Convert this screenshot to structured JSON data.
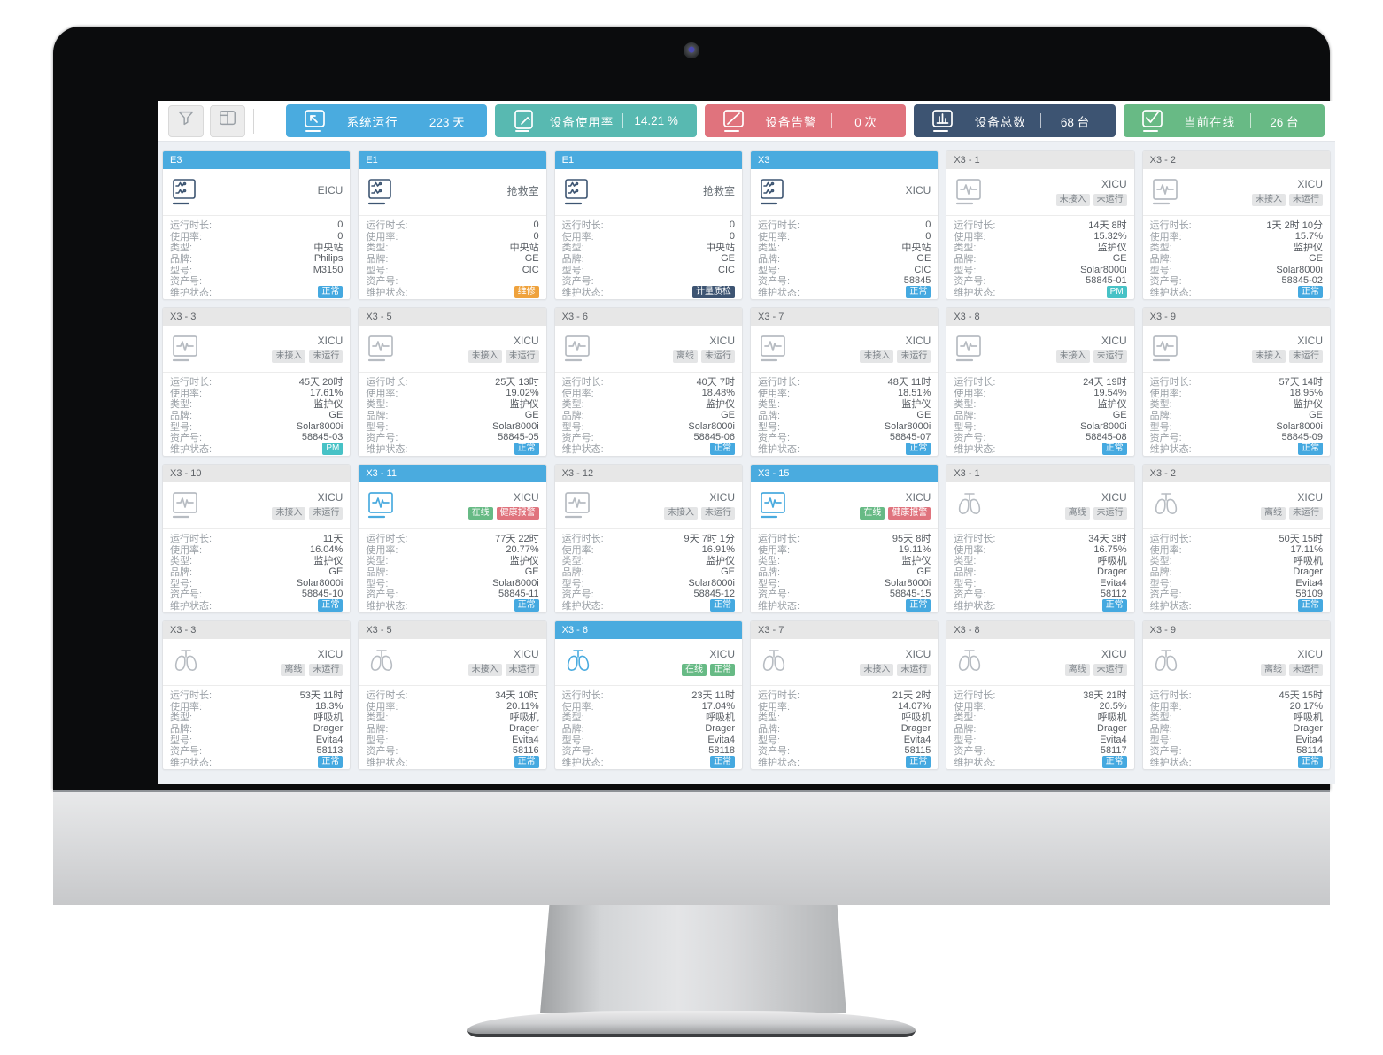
{
  "toolbar": {
    "filter_button": "filter",
    "layout_button": "layout",
    "stats": [
      {
        "label": "系统运行",
        "value": "223 天",
        "color": "#4aabdf",
        "icon": "screen-arrow-icon"
      },
      {
        "label": "设备使用率",
        "value": "14.21 %",
        "color": "#58b9b1",
        "icon": "tablet-pencil-icon"
      },
      {
        "label": "设备告警",
        "value": "0 次",
        "color": "#e0737d",
        "icon": "screen-slash-icon"
      },
      {
        "label": "设备总数",
        "value": "68 台",
        "color": "#3d5472",
        "icon": "bar-chart-icon"
      },
      {
        "label": "当前在线",
        "value": "26 台",
        "color": "#68ba85",
        "icon": "screen-check-icon"
      }
    ]
  },
  "labels": {
    "runtime": "运行时长:",
    "usage": "使用率:",
    "type": "类型:",
    "brand": "品牌:",
    "model": "型号:",
    "asset": "资产号:",
    "maintenance": "维护状态:"
  },
  "cards": [
    {
      "id": "E3",
      "header": "blue",
      "icon": "central-station",
      "icon_color": "navy",
      "location": "EICU",
      "badges": [],
      "runtime": "0",
      "usage": "0",
      "type": "中央站",
      "brand": "Philips",
      "model": "M3150",
      "asset": "",
      "maint": {
        "text": "正常",
        "variant": "blue"
      }
    },
    {
      "id": "E1",
      "header": "blue",
      "icon": "central-station",
      "icon_color": "navy",
      "location": "抢救室",
      "badges": [],
      "runtime": "0",
      "usage": "0",
      "type": "中央站",
      "brand": "GE",
      "model": "CIC",
      "asset": "",
      "maint": {
        "text": "维修",
        "variant": "orange"
      }
    },
    {
      "id": "E1",
      "header": "blue",
      "icon": "central-station",
      "icon_color": "navy",
      "location": "抢救室",
      "badges": [],
      "runtime": "0",
      "usage": "0",
      "type": "中央站",
      "brand": "GE",
      "model": "CIC",
      "asset": "",
      "maint": {
        "text": "计量质检",
        "variant": "navy"
      }
    },
    {
      "id": "X3",
      "header": "blue",
      "icon": "central-station",
      "icon_color": "navy",
      "location": "XICU",
      "badges": [],
      "runtime": "0",
      "usage": "0",
      "type": "中央站",
      "brand": "GE",
      "model": "CIC",
      "asset": "58845",
      "maint": {
        "text": "正常",
        "variant": "blue"
      }
    },
    {
      "id": "X3 - 1",
      "header": "gray",
      "icon": "monitor",
      "icon_color": "gray",
      "location": "XICU",
      "badges": [
        {
          "text": "未接入",
          "variant": "gray"
        },
        {
          "text": "未运行",
          "variant": "gray"
        }
      ],
      "runtime": "14天 8时",
      "usage": "15.32%",
      "type": "监护仪",
      "brand": "GE",
      "model": "Solar8000i",
      "asset": "58845-01",
      "maint": {
        "text": "PM",
        "variant": "teal"
      }
    },
    {
      "id": "X3 - 2",
      "header": "gray",
      "icon": "monitor",
      "icon_color": "gray",
      "location": "XICU",
      "badges": [
        {
          "text": "未接入",
          "variant": "gray"
        },
        {
          "text": "未运行",
          "variant": "gray"
        }
      ],
      "runtime": "1天 2时 10分",
      "usage": "15.7%",
      "type": "监护仪",
      "brand": "GE",
      "model": "Solar8000i",
      "asset": "58845-02",
      "maint": {
        "text": "正常",
        "variant": "blue"
      }
    },
    {
      "id": "X3 - 3",
      "header": "gray",
      "icon": "monitor",
      "icon_color": "gray",
      "location": "XICU",
      "badges": [
        {
          "text": "未接入",
          "variant": "gray"
        },
        {
          "text": "未运行",
          "variant": "gray"
        }
      ],
      "runtime": "45天 20时",
      "usage": "17.61%",
      "type": "监护仪",
      "brand": "GE",
      "model": "Solar8000i",
      "asset": "58845-03",
      "maint": {
        "text": "PM",
        "variant": "teal"
      }
    },
    {
      "id": "X3 - 5",
      "header": "gray",
      "icon": "monitor",
      "icon_color": "gray",
      "location": "XICU",
      "badges": [
        {
          "text": "未接入",
          "variant": "gray"
        },
        {
          "text": "未运行",
          "variant": "gray"
        }
      ],
      "runtime": "25天 13时",
      "usage": "19.02%",
      "type": "监护仪",
      "brand": "GE",
      "model": "Solar8000i",
      "asset": "58845-05",
      "maint": {
        "text": "正常",
        "variant": "blue"
      }
    },
    {
      "id": "X3 - 6",
      "header": "gray",
      "icon": "monitor",
      "icon_color": "gray",
      "location": "XICU",
      "badges": [
        {
          "text": "离线",
          "variant": "gray"
        },
        {
          "text": "未运行",
          "variant": "gray"
        }
      ],
      "runtime": "40天 7时",
      "usage": "18.48%",
      "type": "监护仪",
      "brand": "GE",
      "model": "Solar8000i",
      "asset": "58845-06",
      "maint": {
        "text": "正常",
        "variant": "blue"
      }
    },
    {
      "id": "X3 - 7",
      "header": "gray",
      "icon": "monitor",
      "icon_color": "gray",
      "location": "XICU",
      "badges": [
        {
          "text": "未接入",
          "variant": "gray"
        },
        {
          "text": "未运行",
          "variant": "gray"
        }
      ],
      "runtime": "48天 11时",
      "usage": "18.51%",
      "type": "监护仪",
      "brand": "GE",
      "model": "Solar8000i",
      "asset": "58845-07",
      "maint": {
        "text": "正常",
        "variant": "blue"
      }
    },
    {
      "id": "X3 - 8",
      "header": "gray",
      "icon": "monitor",
      "icon_color": "gray",
      "location": "XICU",
      "badges": [
        {
          "text": "未接入",
          "variant": "gray"
        },
        {
          "text": "未运行",
          "variant": "gray"
        }
      ],
      "runtime": "24天 19时",
      "usage": "19.54%",
      "type": "监护仪",
      "brand": "GE",
      "model": "Solar8000i",
      "asset": "58845-08",
      "maint": {
        "text": "正常",
        "variant": "blue"
      }
    },
    {
      "id": "X3 - 9",
      "header": "gray",
      "icon": "monitor",
      "icon_color": "gray",
      "location": "XICU",
      "badges": [
        {
          "text": "未接入",
          "variant": "gray"
        },
        {
          "text": "未运行",
          "variant": "gray"
        }
      ],
      "runtime": "57天 14时",
      "usage": "18.95%",
      "type": "监护仪",
      "brand": "GE",
      "model": "Solar8000i",
      "asset": "58845-09",
      "maint": {
        "text": "正常",
        "variant": "blue"
      }
    },
    {
      "id": "X3 - 10",
      "header": "gray",
      "icon": "monitor",
      "icon_color": "gray",
      "location": "XICU",
      "badges": [
        {
          "text": "未接入",
          "variant": "gray"
        },
        {
          "text": "未运行",
          "variant": "gray"
        }
      ],
      "runtime": "11天",
      "usage": "16.04%",
      "type": "监护仪",
      "brand": "GE",
      "model": "Solar8000i",
      "asset": "58845-10",
      "maint": {
        "text": "正常",
        "variant": "blue"
      }
    },
    {
      "id": "X3 - 11",
      "header": "blue",
      "icon": "monitor",
      "icon_color": "blue",
      "location": "XICU",
      "badges": [
        {
          "text": "在线",
          "variant": "green"
        },
        {
          "text": "健康报警",
          "variant": "red"
        }
      ],
      "runtime": "77天 22时",
      "usage": "20.77%",
      "type": "监护仪",
      "brand": "GE",
      "model": "Solar8000i",
      "asset": "58845-11",
      "maint": {
        "text": "正常",
        "variant": "blue"
      }
    },
    {
      "id": "X3 - 12",
      "header": "gray",
      "icon": "monitor",
      "icon_color": "gray",
      "location": "XICU",
      "badges": [
        {
          "text": "未接入",
          "variant": "gray"
        },
        {
          "text": "未运行",
          "variant": "gray"
        }
      ],
      "runtime": "9天 7时 1分",
      "usage": "16.91%",
      "type": "监护仪",
      "brand": "GE",
      "model": "Solar8000i",
      "asset": "58845-12",
      "maint": {
        "text": "正常",
        "variant": "blue"
      }
    },
    {
      "id": "X3 - 15",
      "header": "blue",
      "icon": "monitor",
      "icon_color": "blue",
      "location": "XICU",
      "badges": [
        {
          "text": "在线",
          "variant": "green"
        },
        {
          "text": "健康报警",
          "variant": "red"
        }
      ],
      "runtime": "95天 8时",
      "usage": "19.11%",
      "type": "监护仪",
      "brand": "GE",
      "model": "Solar8000i",
      "asset": "58845-15",
      "maint": {
        "text": "正常",
        "variant": "blue"
      }
    },
    {
      "id": "X3 - 1",
      "header": "gray",
      "icon": "ventilator",
      "icon_color": "gray",
      "location": "XICU",
      "badges": [
        {
          "text": "离线",
          "variant": "gray"
        },
        {
          "text": "未运行",
          "variant": "gray"
        }
      ],
      "runtime": "34天 3时",
      "usage": "16.75%",
      "type": "呼吸机",
      "brand": "Drager",
      "model": "Evita4",
      "asset": "58112",
      "maint": {
        "text": "正常",
        "variant": "blue"
      }
    },
    {
      "id": "X3 - 2",
      "header": "gray",
      "icon": "ventilator",
      "icon_color": "gray",
      "location": "XICU",
      "badges": [
        {
          "text": "离线",
          "variant": "gray"
        },
        {
          "text": "未运行",
          "variant": "gray"
        }
      ],
      "runtime": "50天 15时",
      "usage": "17.11%",
      "type": "呼吸机",
      "brand": "Drager",
      "model": "Evita4",
      "asset": "58109",
      "maint": {
        "text": "正常",
        "variant": "blue"
      }
    },
    {
      "id": "X3 - 3",
      "header": "gray",
      "icon": "ventilator",
      "icon_color": "gray",
      "location": "XICU",
      "badges": [
        {
          "text": "离线",
          "variant": "gray"
        },
        {
          "text": "未运行",
          "variant": "gray"
        }
      ],
      "runtime": "53天 11时",
      "usage": "18.3%",
      "type": "呼吸机",
      "brand": "Drager",
      "model": "Evita4",
      "asset": "58113",
      "maint": {
        "text": "正常",
        "variant": "blue"
      }
    },
    {
      "id": "X3 - 5",
      "header": "gray",
      "icon": "ventilator",
      "icon_color": "gray",
      "location": "XICU",
      "badges": [
        {
          "text": "未接入",
          "variant": "gray"
        },
        {
          "text": "未运行",
          "variant": "gray"
        }
      ],
      "runtime": "34天 10时",
      "usage": "20.11%",
      "type": "呼吸机",
      "brand": "Drager",
      "model": "Evita4",
      "asset": "58116",
      "maint": {
        "text": "正常",
        "variant": "blue"
      }
    },
    {
      "id": "X3 - 6",
      "header": "blue",
      "icon": "ventilator",
      "icon_color": "blue",
      "location": "XICU",
      "badges": [
        {
          "text": "在线",
          "variant": "green"
        },
        {
          "text": "正常",
          "variant": "green"
        }
      ],
      "runtime": "23天 11时",
      "usage": "17.04%",
      "type": "呼吸机",
      "brand": "Drager",
      "model": "Evita4",
      "asset": "58118",
      "maint": {
        "text": "正常",
        "variant": "blue"
      }
    },
    {
      "id": "X3 - 7",
      "header": "gray",
      "icon": "ventilator",
      "icon_color": "gray",
      "location": "XICU",
      "badges": [
        {
          "text": "未接入",
          "variant": "gray"
        },
        {
          "text": "未运行",
          "variant": "gray"
        }
      ],
      "runtime": "21天 2时",
      "usage": "14.07%",
      "type": "呼吸机",
      "brand": "Drager",
      "model": "Evita4",
      "asset": "58115",
      "maint": {
        "text": "正常",
        "variant": "blue"
      }
    },
    {
      "id": "X3 - 8",
      "header": "gray",
      "icon": "ventilator",
      "icon_color": "gray",
      "location": "XICU",
      "badges": [
        {
          "text": "离线",
          "variant": "gray"
        },
        {
          "text": "未运行",
          "variant": "gray"
        }
      ],
      "runtime": "38天 21时",
      "usage": "20.5%",
      "type": "呼吸机",
      "brand": "Drager",
      "model": "Evita4",
      "asset": "58117",
      "maint": {
        "text": "正常",
        "variant": "blue"
      }
    },
    {
      "id": "X3 - 9",
      "header": "gray",
      "icon": "ventilator",
      "icon_color": "gray",
      "location": "XICU",
      "badges": [
        {
          "text": "离线",
          "variant": "gray"
        },
        {
          "text": "未运行",
          "variant": "gray"
        }
      ],
      "runtime": "45天 15时",
      "usage": "20.17%",
      "type": "呼吸机",
      "brand": "Drager",
      "model": "Evita4",
      "asset": "58114",
      "maint": {
        "text": "正常",
        "variant": "blue"
      }
    }
  ]
}
